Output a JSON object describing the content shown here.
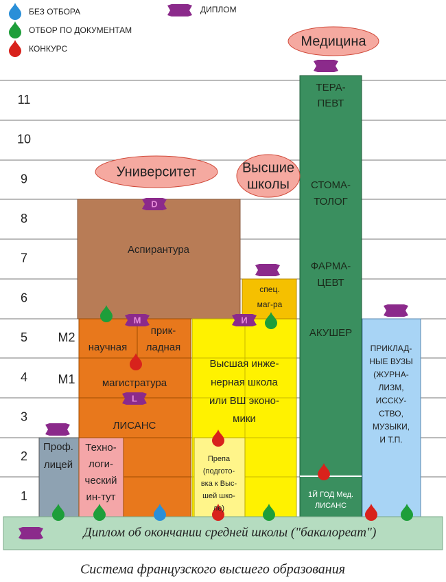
{
  "legend": {
    "no_selection": "БЕЗ ОТБОРА",
    "documents": "ОТБОР ПО ДОКУМЕНТАМ",
    "competition": "КОНКУРС",
    "diploma": "ДИПЛОМ"
  },
  "levels": [
    11,
    10,
    9,
    8,
    7,
    6,
    5,
    4,
    3,
    2,
    1
  ],
  "degrees": {
    "m2": "M2",
    "m1": "M1"
  },
  "ovals": {
    "medicine": "Медицина",
    "university": "Университет",
    "high_schools": [
      "Высшие",
      "школы"
    ]
  },
  "badges": {
    "doctorate": "D",
    "master": "M",
    "licence": "L",
    "engineer": "И"
  },
  "blocks": {
    "doctorate": "Аспирантура",
    "research": "научная",
    "applied": [
      "прик-",
      "ладная"
    ],
    "master": "магистратура",
    "licence": "ЛИСАНС",
    "tech_institute": [
      "Техно-",
      "логи-",
      "ческий",
      "ин-тут"
    ],
    "lyceum": [
      "Проф.",
      "лицей"
    ],
    "grande_ecole": [
      "Высшая инже-",
      "нерная школа",
      "или ВШ эконо-",
      "мики"
    ],
    "special_master": [
      "спец.",
      "маг-ра"
    ],
    "prepa": [
      "Препа",
      "(подгото-",
      "вка к Выс-",
      "шей шко-",
      "ле)"
    ],
    "medicine": [
      "ТЕРА-",
      "ПЕВТ",
      "СТОМА-",
      "ТОЛОГ",
      "ФАРМА-",
      "ЦЕВТ",
      "АКУШЕР"
    ],
    "medicine_first": [
      "1Й ГОД Мед.",
      "ЛИСАНС"
    ],
    "applied_schools": [
      "ПРИКЛАД-",
      "НЫЕ ВУЗЫ",
      "(ЖУРНА-",
      "ЛИЗМ,",
      "ИССКУ-",
      "СТВО,",
      "МУЗЫКИ,",
      "И Т.П."
    ]
  },
  "footer": "Диплом об окончании средней школы (\"бакалореат\")",
  "caption": "Система французского высшего образования"
}
